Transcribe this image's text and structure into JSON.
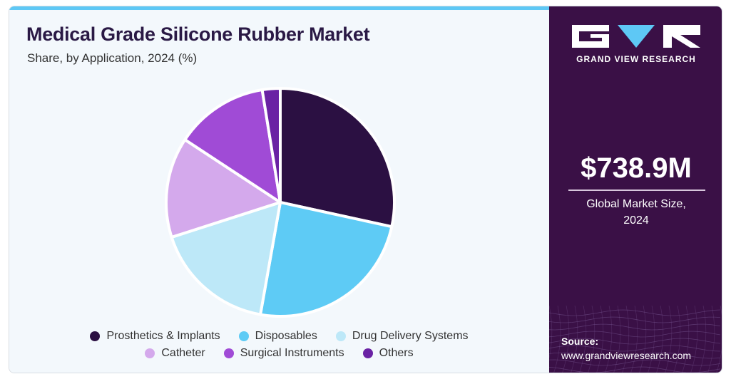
{
  "header": {
    "title": "Medical Grade Silicone Rubber Market",
    "subtitle": "Share, by Application, 2024 (%)"
  },
  "chart_data": {
    "type": "pie",
    "title": "Medical Grade Silicone Rubber Market",
    "subtitle": "Share, by Application, 2024 (%)",
    "categories": [
      "Prosthetics & Implants",
      "Disposables",
      "Drug Delivery Systems",
      "Catheter",
      "Surgical Instruments",
      "Others"
    ],
    "values": [
      28,
      24,
      17,
      14,
      13,
      2.5
    ],
    "colors": [
      "#2b1042",
      "#5ecbf5",
      "#bde8f8",
      "#d4a9ec",
      "#a04bd6",
      "#6a22a4"
    ],
    "legend_position": "bottom"
  },
  "legend": {
    "rows": [
      [
        {
          "label": "Prosthetics & Implants",
          "color": "#2b1042"
        },
        {
          "label": "Disposables",
          "color": "#5ecbf5"
        },
        {
          "label": "Drug Delivery Systems",
          "color": "#bde8f8"
        }
      ],
      [
        {
          "label": "Catheter",
          "color": "#d4a9ec"
        },
        {
          "label": "Surgical Instruments",
          "color": "#a04bd6"
        },
        {
          "label": "Others",
          "color": "#6a22a4"
        }
      ]
    ]
  },
  "sidebar": {
    "brand": "GRAND VIEW RESEARCH",
    "market_value": "$738.9M",
    "market_label_line1": "Global Market Size,",
    "market_label_line2": "2024",
    "source_label": "Source:",
    "source_url": "www.grandviewresearch.com"
  },
  "colors": {
    "sidebar_bg": "#3a1046",
    "accent_bar": "#5ec8f5",
    "title": "#2a1945",
    "panel_bg": "#f3f8fc"
  }
}
